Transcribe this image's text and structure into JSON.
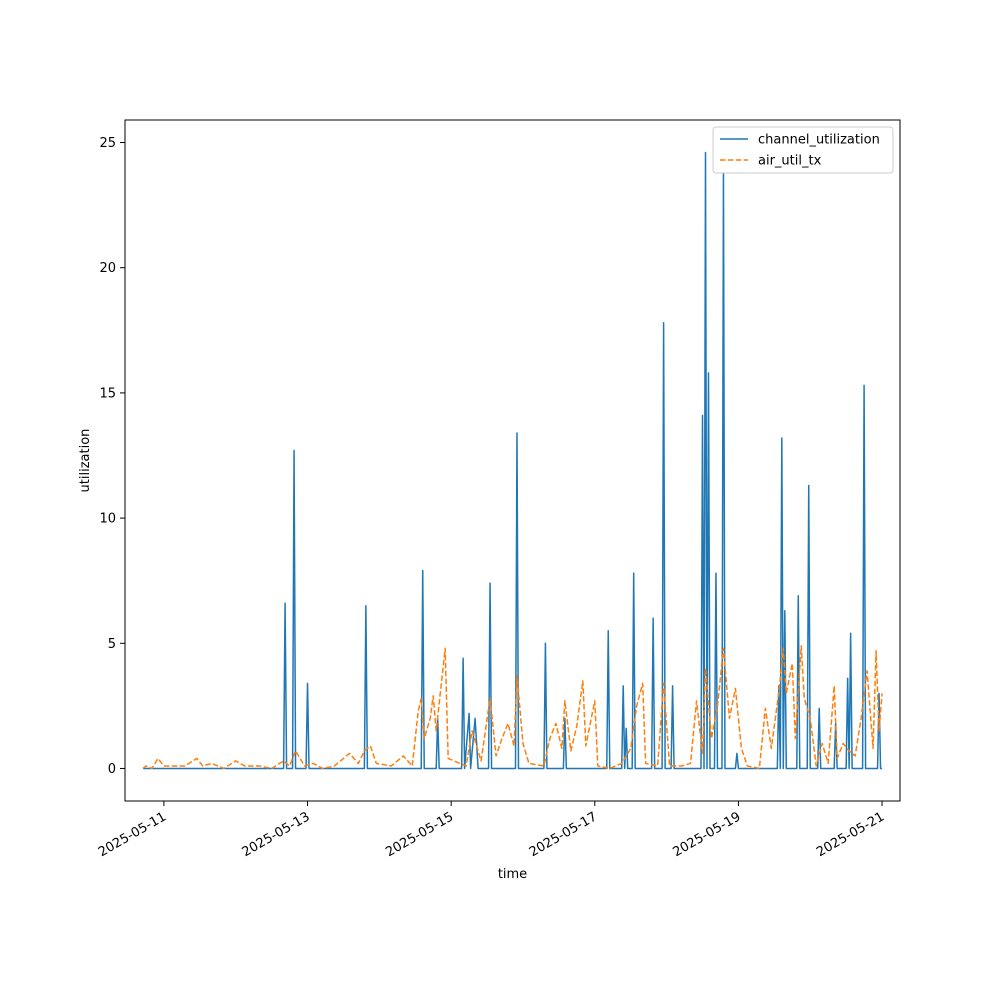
{
  "chart_data": {
    "type": "line",
    "title": "",
    "xlabel": "time",
    "ylabel": "utilization",
    "x_axis_type": "date",
    "xlim": [
      "2025-05-10T11:00",
      "2025-05-21T06:00"
    ],
    "ylim": [
      -1.3,
      25.9
    ],
    "x_ticks": [
      "2025-05-11",
      "2025-05-13",
      "2025-05-15",
      "2025-05-17",
      "2025-05-19",
      "2025-05-21"
    ],
    "y_ticks": [
      0,
      5,
      10,
      15,
      20,
      25
    ],
    "grid": false,
    "legend_position": "top-right",
    "series": [
      {
        "name": "channel_utilization",
        "color": "#1f77b4",
        "style": "solid",
        "points": [
          [
            "2025-05-10T17:00",
            0
          ],
          [
            "2025-05-12T16:00",
            0
          ],
          [
            "2025-05-12T16:30",
            6.6
          ],
          [
            "2025-05-12T17:00",
            0
          ],
          [
            "2025-05-12T19:00",
            0
          ],
          [
            "2025-05-12T19:30",
            12.7
          ],
          [
            "2025-05-12T20:00",
            0
          ],
          [
            "2025-05-12T23:30",
            0
          ],
          [
            "2025-05-13T00:00",
            3.4
          ],
          [
            "2025-05-13T00:30",
            0
          ],
          [
            "2025-05-13T19:00",
            0
          ],
          [
            "2025-05-13T19:30",
            6.5
          ],
          [
            "2025-05-13T20:00",
            0
          ],
          [
            "2025-05-14T14:00",
            0
          ],
          [
            "2025-05-14T14:30",
            7.9
          ],
          [
            "2025-05-14T15:00",
            0
          ],
          [
            "2025-05-14T19:00",
            0
          ],
          [
            "2025-05-14T19:30",
            2.0
          ],
          [
            "2025-05-14T20:00",
            0
          ],
          [
            "2025-05-15T03:30",
            0
          ],
          [
            "2025-05-15T04:00",
            4.4
          ],
          [
            "2025-05-15T04:30",
            0
          ],
          [
            "2025-05-15T06:00",
            2.2
          ],
          [
            "2025-05-15T06:30",
            0
          ],
          [
            "2025-05-15T08:00",
            2.0
          ],
          [
            "2025-05-15T09:00",
            0
          ],
          [
            "2025-05-15T12:30",
            0
          ],
          [
            "2025-05-15T13:00",
            7.4
          ],
          [
            "2025-05-15T13:30",
            0
          ],
          [
            "2025-05-15T21:30",
            0
          ],
          [
            "2025-05-15T22:00",
            13.4
          ],
          [
            "2025-05-15T22:30",
            0
          ],
          [
            "2025-05-16T07:00",
            0
          ],
          [
            "2025-05-16T07:30",
            5.0
          ],
          [
            "2025-05-16T08:00",
            0
          ],
          [
            "2025-05-16T13:30",
            0
          ],
          [
            "2025-05-16T14:00",
            2.0
          ],
          [
            "2025-05-16T14:30",
            0
          ],
          [
            "2025-05-17T04:00",
            0
          ],
          [
            "2025-05-17T04:30",
            5.5
          ],
          [
            "2025-05-17T05:00",
            0
          ],
          [
            "2025-05-17T09:00",
            0
          ],
          [
            "2025-05-17T09:30",
            3.3
          ],
          [
            "2025-05-17T10:00",
            0
          ],
          [
            "2025-05-17T10:30",
            1.6
          ],
          [
            "2025-05-17T11:00",
            0
          ],
          [
            "2025-05-17T12:30",
            0
          ],
          [
            "2025-05-17T13:00",
            7.8
          ],
          [
            "2025-05-17T13:30",
            0
          ],
          [
            "2025-05-17T19:00",
            0
          ],
          [
            "2025-05-17T19:30",
            6.0
          ],
          [
            "2025-05-17T20:00",
            0
          ],
          [
            "2025-05-17T22:30",
            0
          ],
          [
            "2025-05-17T23:00",
            17.8
          ],
          [
            "2025-05-17T23:30",
            0
          ],
          [
            "2025-05-18T01:30",
            0
          ],
          [
            "2025-05-18T02:00",
            3.3
          ],
          [
            "2025-05-18T02:30",
            0
          ],
          [
            "2025-05-18T11:30",
            0
          ],
          [
            "2025-05-18T12:00",
            14.1
          ],
          [
            "2025-05-18T12:30",
            0
          ],
          [
            "2025-05-18T13:00",
            24.6
          ],
          [
            "2025-05-18T13:30",
            0
          ],
          [
            "2025-05-18T14:00",
            15.8
          ],
          [
            "2025-05-18T14:30",
            0
          ],
          [
            "2025-05-18T16:00",
            0
          ],
          [
            "2025-05-18T16:30",
            7.8
          ],
          [
            "2025-05-18T17:00",
            0
          ],
          [
            "2025-05-18T18:30",
            0
          ],
          [
            "2025-05-18T19:00",
            23.8
          ],
          [
            "2025-05-18T19:30",
            0
          ],
          [
            "2025-05-18T23:00",
            0
          ],
          [
            "2025-05-18T23:30",
            0.6
          ],
          [
            "2025-05-19T00:00",
            0
          ],
          [
            "2025-05-19T13:00",
            0
          ],
          [
            "2025-05-19T13:30",
            3.3
          ],
          [
            "2025-05-19T14:00",
            0
          ],
          [
            "2025-05-19T14:30",
            13.2
          ],
          [
            "2025-05-19T15:00",
            0
          ],
          [
            "2025-05-19T15:30",
            6.3
          ],
          [
            "2025-05-19T16:00",
            0
          ],
          [
            "2025-05-19T19:30",
            0
          ],
          [
            "2025-05-19T20:00",
            6.9
          ],
          [
            "2025-05-19T20:30",
            0
          ],
          [
            "2025-05-19T23:00",
            0
          ],
          [
            "2025-05-19T23:30",
            11.3
          ],
          [
            "2025-05-20T00:00",
            0
          ],
          [
            "2025-05-20T02:30",
            0
          ],
          [
            "2025-05-20T03:00",
            2.4
          ],
          [
            "2025-05-20T03:30",
            0
          ],
          [
            "2025-05-20T08:00",
            0
          ],
          [
            "2025-05-20T08:30",
            1.8
          ],
          [
            "2025-05-20T09:00",
            0
          ],
          [
            "2025-05-20T12:00",
            0
          ],
          [
            "2025-05-20T12:30",
            3.6
          ],
          [
            "2025-05-20T13:00",
            0
          ],
          [
            "2025-05-20T13:30",
            5.4
          ],
          [
            "2025-05-20T14:00",
            0
          ],
          [
            "2025-05-20T17:30",
            0
          ],
          [
            "2025-05-20T18:00",
            15.3
          ],
          [
            "2025-05-20T18:30",
            0
          ],
          [
            "2025-05-20T22:30",
            0
          ],
          [
            "2025-05-20T23:00",
            3.0
          ],
          [
            "2025-05-20T23:30",
            0
          ],
          [
            "2025-05-21T00:00",
            0
          ]
        ]
      },
      {
        "name": "air_util_tx",
        "color": "#ff7f0e",
        "style": "dashed",
        "points": [
          [
            "2025-05-10T17:00",
            0
          ],
          [
            "2025-05-10T18:00",
            0.1
          ],
          [
            "2025-05-10T20:00",
            0.0
          ],
          [
            "2025-05-10T22:00",
            0.4
          ],
          [
            "2025-05-11T00:00",
            0.1
          ],
          [
            "2025-05-11T03:00",
            0.1
          ],
          [
            "2025-05-11T07:00",
            0.1
          ],
          [
            "2025-05-11T11:00",
            0.4
          ],
          [
            "2025-05-11T13:00",
            0.1
          ],
          [
            "2025-05-11T16:00",
            0.2
          ],
          [
            "2025-05-11T20:00",
            0.0
          ],
          [
            "2025-05-12T00:00",
            0.3
          ],
          [
            "2025-05-12T03:00",
            0.1
          ],
          [
            "2025-05-12T08:00",
            0.1
          ],
          [
            "2025-05-12T12:00",
            0.0
          ],
          [
            "2025-05-12T16:00",
            0.3
          ],
          [
            "2025-05-12T18:00",
            0.1
          ],
          [
            "2025-05-12T20:00",
            0.7
          ],
          [
            "2025-05-12T23:00",
            0.1
          ],
          [
            "2025-05-13T02:00",
            0.2
          ],
          [
            "2025-05-13T05:00",
            0.0
          ],
          [
            "2025-05-13T09:00",
            0.1
          ],
          [
            "2025-05-13T14:00",
            0.6
          ],
          [
            "2025-05-13T17:00",
            0.2
          ],
          [
            "2025-05-13T19:00",
            0.7
          ],
          [
            "2025-05-13T21:00",
            0.9
          ],
          [
            "2025-05-13T23:00",
            0.2
          ],
          [
            "2025-05-14T04:00",
            0.1
          ],
          [
            "2025-05-14T08:00",
            0.5
          ],
          [
            "2025-05-14T11:00",
            0.1
          ],
          [
            "2025-05-14T13:00",
            2.3
          ],
          [
            "2025-05-14T14:00",
            2.8
          ],
          [
            "2025-05-14T15:00",
            1.2
          ],
          [
            "2025-05-14T17:00",
            2.0
          ],
          [
            "2025-05-14T18:00",
            2.9
          ],
          [
            "2025-05-14T19:00",
            1.5
          ],
          [
            "2025-05-14T22:00",
            4.8
          ],
          [
            "2025-05-14T23:00",
            0.4
          ],
          [
            "2025-05-15T03:00",
            0.2
          ],
          [
            "2025-05-15T05:00",
            0.1
          ],
          [
            "2025-05-15T07:00",
            1.5
          ],
          [
            "2025-05-15T10:00",
            0.3
          ],
          [
            "2025-05-15T13:00",
            2.8
          ],
          [
            "2025-05-15T15:00",
            0.5
          ],
          [
            "2025-05-15T17:00",
            1.2
          ],
          [
            "2025-05-15T19:00",
            1.8
          ],
          [
            "2025-05-15T21:00",
            0.9
          ],
          [
            "2025-05-15T22:00",
            3.7
          ],
          [
            "2025-05-16T00:00",
            1.0
          ],
          [
            "2025-05-16T02:00",
            0.2
          ],
          [
            "2025-05-16T07:00",
            0.1
          ],
          [
            "2025-05-16T09:00",
            1.2
          ],
          [
            "2025-05-16T11:00",
            1.8
          ],
          [
            "2025-05-16T13:00",
            0.8
          ],
          [
            "2025-05-16T14:00",
            2.7
          ],
          [
            "2025-05-16T16:00",
            0.7
          ],
          [
            "2025-05-16T18:00",
            1.7
          ],
          [
            "2025-05-16T20:00",
            3.5
          ],
          [
            "2025-05-16T21:00",
            0.9
          ],
          [
            "2025-05-17T00:00",
            2.7
          ],
          [
            "2025-05-17T01:00",
            0.1
          ],
          [
            "2025-05-17T05:00",
            0.0
          ],
          [
            "2025-05-17T09:00",
            0.2
          ],
          [
            "2025-05-17T12:00",
            0.8
          ],
          [
            "2025-05-17T14:00",
            2.5
          ],
          [
            "2025-05-17T16:00",
            3.4
          ],
          [
            "2025-05-17T17:00",
            0.2
          ],
          [
            "2025-05-17T21:00",
            0.1
          ],
          [
            "2025-05-17T23:00",
            3.4
          ],
          [
            "2025-05-18T01:00",
            0.1
          ],
          [
            "2025-05-18T05:00",
            0.1
          ],
          [
            "2025-05-18T08:00",
            0.2
          ],
          [
            "2025-05-18T10:00",
            2.7
          ],
          [
            "2025-05-18T12:00",
            0.6
          ],
          [
            "2025-05-18T13:00",
            4.0
          ],
          [
            "2025-05-18T15:00",
            1.2
          ],
          [
            "2025-05-18T17:00",
            2.5
          ],
          [
            "2025-05-18T19:00",
            4.8
          ],
          [
            "2025-05-18T21:00",
            2.0
          ],
          [
            "2025-05-18T23:00",
            3.2
          ],
          [
            "2025-05-19T01:00",
            0.8
          ],
          [
            "2025-05-19T03:00",
            0.1
          ],
          [
            "2025-05-19T07:00",
            0.0
          ],
          [
            "2025-05-19T09:00",
            2.4
          ],
          [
            "2025-05-19T11:00",
            0.8
          ],
          [
            "2025-05-19T13:00",
            2.6
          ],
          [
            "2025-05-19T14:00",
            3.6
          ],
          [
            "2025-05-19T15:00",
            4.8
          ],
          [
            "2025-05-19T16:00",
            3.0
          ],
          [
            "2025-05-19T18:00",
            4.2
          ],
          [
            "2025-05-19T19:00",
            1.2
          ],
          [
            "2025-05-19T21:00",
            4.9
          ],
          [
            "2025-05-19T22:00",
            2.8
          ],
          [
            "2025-05-20T00:00",
            2.0
          ],
          [
            "2025-05-20T02:00",
            0.1
          ],
          [
            "2025-05-20T04:00",
            1.0
          ],
          [
            "2025-05-20T06:00",
            0.2
          ],
          [
            "2025-05-20T08:00",
            3.3
          ],
          [
            "2025-05-20T09:00",
            0.4
          ],
          [
            "2025-05-20T11:00",
            1.0
          ],
          [
            "2025-05-20T13:00",
            0.7
          ],
          [
            "2025-05-20T15:00",
            0.5
          ],
          [
            "2025-05-20T17:00",
            2.0
          ],
          [
            "2025-05-20T19:00",
            3.9
          ],
          [
            "2025-05-20T21:00",
            0.8
          ],
          [
            "2025-05-20T22:00",
            4.7
          ],
          [
            "2025-05-20T23:00",
            1.5
          ],
          [
            "2025-05-21T00:00",
            3.0
          ]
        ]
      }
    ]
  }
}
